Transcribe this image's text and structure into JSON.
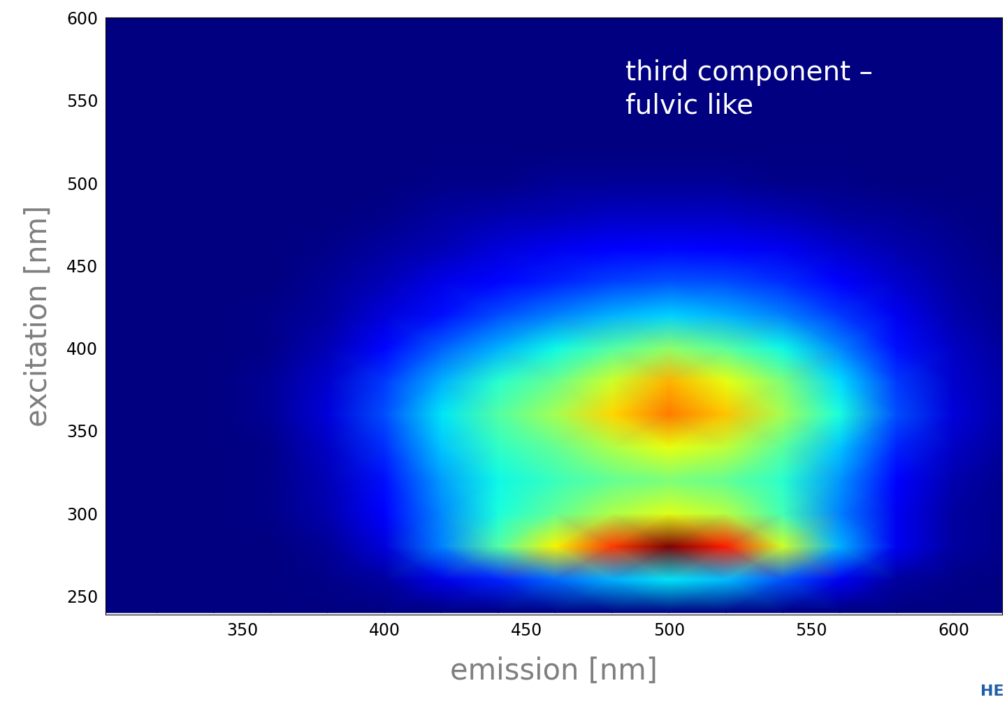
{
  "chart_data": {
    "type": "heatmap",
    "annotation": "third component –\nfulvic like",
    "x_label": "emission [nm]",
    "y_label": "excitation [nm]",
    "logo": "HE",
    "x": [
      300,
      320,
      340,
      360,
      380,
      400,
      420,
      440,
      460,
      480,
      500,
      520,
      540,
      560,
      580,
      600,
      620
    ],
    "y": [
      240,
      260,
      280,
      300,
      320,
      340,
      360,
      380,
      400,
      420,
      440,
      460,
      480,
      500,
      520,
      540,
      560,
      580,
      600
    ],
    "cells": [
      [
        0,
        0,
        0,
        0,
        0,
        0,
        0,
        0,
        0,
        0,
        0,
        0,
        0,
        0,
        0,
        0,
        0
      ],
      [
        0,
        0,
        0,
        0,
        0.01,
        0.03,
        0.09,
        0.16,
        0.23,
        0.3,
        0.35,
        0.31,
        0.21,
        0.1,
        0.03,
        0.01,
        0
      ],
      [
        0,
        0,
        0,
        0,
        0.02,
        0.08,
        0.25,
        0.45,
        0.65,
        0.85,
        1.0,
        0.88,
        0.6,
        0.3,
        0.1,
        0.03,
        0.01
      ],
      [
        0,
        0,
        0,
        0.01,
        0.04,
        0.12,
        0.26,
        0.38,
        0.47,
        0.56,
        0.62,
        0.57,
        0.43,
        0.25,
        0.1,
        0.03,
        0.01
      ],
      [
        0,
        0,
        0,
        0.01,
        0.05,
        0.14,
        0.28,
        0.37,
        0.42,
        0.47,
        0.5,
        0.47,
        0.4,
        0.27,
        0.12,
        0.04,
        0.01
      ],
      [
        0,
        0,
        0,
        0.01,
        0.06,
        0.17,
        0.32,
        0.41,
        0.47,
        0.56,
        0.63,
        0.58,
        0.46,
        0.32,
        0.16,
        0.06,
        0.02
      ],
      [
        0,
        0,
        0,
        0.02,
        0.08,
        0.2,
        0.35,
        0.45,
        0.55,
        0.68,
        0.78,
        0.7,
        0.55,
        0.38,
        0.2,
        0.08,
        0.03
      ],
      [
        0,
        0,
        0,
        0.02,
        0.07,
        0.18,
        0.3,
        0.4,
        0.48,
        0.6,
        0.72,
        0.63,
        0.5,
        0.34,
        0.18,
        0.07,
        0.03
      ],
      [
        0,
        0,
        0,
        0.01,
        0.05,
        0.13,
        0.22,
        0.3,
        0.37,
        0.45,
        0.52,
        0.46,
        0.37,
        0.26,
        0.14,
        0.06,
        0.02
      ],
      [
        0,
        0,
        0,
        0.01,
        0.03,
        0.08,
        0.14,
        0.2,
        0.25,
        0.3,
        0.33,
        0.3,
        0.25,
        0.18,
        0.1,
        0.04,
        0.01
      ],
      [
        0,
        0,
        0,
        0,
        0.02,
        0.05,
        0.09,
        0.13,
        0.16,
        0.19,
        0.21,
        0.2,
        0.17,
        0.12,
        0.07,
        0.03,
        0.01
      ],
      [
        0,
        0,
        0,
        0,
        0.01,
        0.03,
        0.05,
        0.08,
        0.1,
        0.12,
        0.13,
        0.12,
        0.1,
        0.07,
        0.04,
        0.02,
        0
      ],
      [
        0,
        0,
        0,
        0,
        0,
        0.01,
        0.03,
        0.04,
        0.05,
        0.06,
        0.06,
        0.06,
        0.05,
        0.03,
        0.02,
        0.01,
        0
      ],
      [
        0,
        0,
        0,
        0,
        0,
        0,
        0.01,
        0.01,
        0.02,
        0.02,
        0.02,
        0.02,
        0.01,
        0.01,
        0,
        0,
        0
      ],
      [
        0,
        0,
        0,
        0,
        0,
        0,
        0,
        0,
        0,
        0,
        0,
        0,
        0,
        0,
        0,
        0,
        0
      ],
      [
        0,
        0,
        0,
        0,
        0,
        0,
        0,
        0,
        0,
        0,
        0,
        0,
        0,
        0,
        0,
        0,
        0
      ],
      [
        0,
        0,
        0,
        0,
        0,
        0,
        0,
        0,
        0,
        0,
        0,
        0,
        0,
        0,
        0,
        0,
        0
      ],
      [
        0,
        0,
        0,
        0,
        0,
        0,
        0,
        0,
        0,
        0,
        0,
        0,
        0,
        0,
        0,
        0,
        0
      ],
      [
        0,
        0,
        0,
        0,
        0,
        0,
        0,
        0,
        0,
        0,
        0,
        0,
        0,
        0,
        0,
        0,
        0
      ]
    ],
    "color_range": [
      0,
      1
    ],
    "xlim": [
      302,
      617
    ],
    "ylim": [
      239,
      600
    ],
    "xticks": [
      350,
      400,
      450,
      500,
      550,
      600
    ],
    "yticks": [
      250,
      300,
      350,
      400,
      450,
      500,
      550,
      600
    ]
  }
}
